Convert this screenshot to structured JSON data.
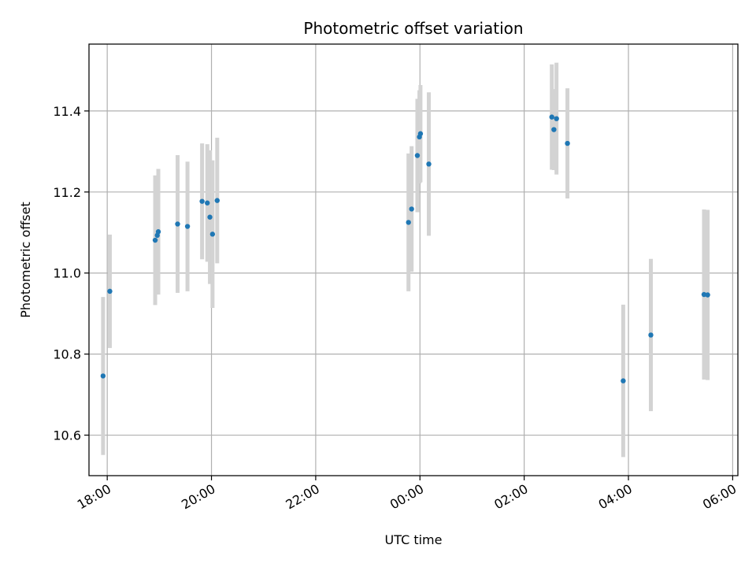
{
  "chart_data": {
    "type": "scatter",
    "title": "Photometric offset variation",
    "xlabel": "UTC time",
    "ylabel": "Photometric offset",
    "xlim_hours": [
      17.65,
      30.1
    ],
    "ylim": [
      10.5,
      11.565
    ],
    "grid": true,
    "colors": {
      "marker": "#1f77b4",
      "errorbar": "#d3d3d3",
      "grid": "#b0b0b0",
      "axes": "#000000"
    },
    "x_ticks": [
      {
        "hour": 18,
        "label": "18:00"
      },
      {
        "hour": 20,
        "label": "20:00"
      },
      {
        "hour": 22,
        "label": "22:00"
      },
      {
        "hour": 24,
        "label": "00:00"
      },
      {
        "hour": 26,
        "label": "02:00"
      },
      {
        "hour": 28,
        "label": "04:00"
      },
      {
        "hour": 30,
        "label": "06:00"
      }
    ],
    "y_ticks": [
      {
        "value": 10.6,
        "label": "10.6"
      },
      {
        "value": 10.8,
        "label": "10.8"
      },
      {
        "value": 11.0,
        "label": "11.0"
      },
      {
        "value": 11.2,
        "label": "11.2"
      },
      {
        "value": 11.4,
        "label": "11.4"
      }
    ],
    "points": [
      {
        "t": 17.92,
        "y": 10.746,
        "err": 0.195
      },
      {
        "t": 18.05,
        "y": 10.955,
        "err": 0.14
      },
      {
        "t": 18.92,
        "y": 11.081,
        "err": 0.16
      },
      {
        "t": 18.96,
        "y": 11.093,
        "err": 0.14
      },
      {
        "t": 18.98,
        "y": 11.102,
        "err": 0.155
      },
      {
        "t": 19.35,
        "y": 11.121,
        "err": 0.17
      },
      {
        "t": 19.54,
        "y": 11.115,
        "err": 0.16
      },
      {
        "t": 19.82,
        "y": 11.177,
        "err": 0.143
      },
      {
        "t": 19.92,
        "y": 11.173,
        "err": 0.145
      },
      {
        "t": 19.97,
        "y": 11.138,
        "err": 0.165
      },
      {
        "t": 20.02,
        "y": 11.096,
        "err": 0.182
      },
      {
        "t": 20.11,
        "y": 11.179,
        "err": 0.155
      },
      {
        "t": 23.78,
        "y": 11.125,
        "err": 0.17
      },
      {
        "t": 23.84,
        "y": 11.158,
        "err": 0.155
      },
      {
        "t": 23.95,
        "y": 11.29,
        "err": 0.14
      },
      {
        "t": 23.99,
        "y": 11.336,
        "err": 0.115
      },
      {
        "t": 24.01,
        "y": 11.344,
        "err": 0.12
      },
      {
        "t": 24.17,
        "y": 11.269,
        "err": 0.177
      },
      {
        "t": 26.53,
        "y": 11.385,
        "err": 0.13
      },
      {
        "t": 26.57,
        "y": 11.354,
        "err": 0.1
      },
      {
        "t": 26.62,
        "y": 11.381,
        "err": 0.138
      },
      {
        "t": 26.83,
        "y": 11.32,
        "err": 0.136
      },
      {
        "t": 27.9,
        "y": 10.734,
        "err": 0.188
      },
      {
        "t": 28.43,
        "y": 10.847,
        "err": 0.188
      },
      {
        "t": 29.45,
        "y": 10.947,
        "err": 0.21
      },
      {
        "t": 29.52,
        "y": 10.946,
        "err": 0.21
      }
    ]
  }
}
